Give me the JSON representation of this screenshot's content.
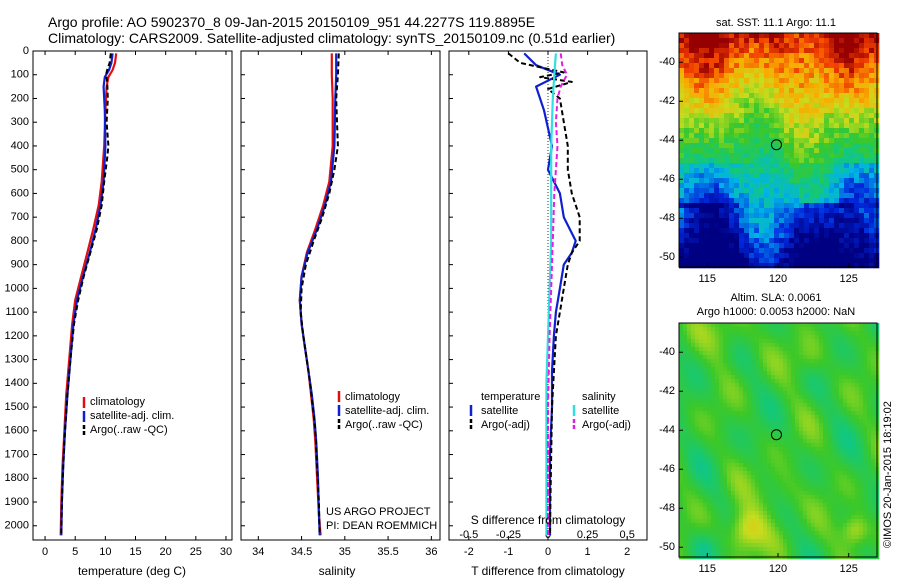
{
  "header": {
    "line1": "Argo profile: AO 5902370_8 09-Jan-2015 20150109_951 44.2277S 119.8895E",
    "line2": "Climatology: CARS2009. Satellite-adjusted climatology: synTS_20150109.nc (0.51d earlier)"
  },
  "colors": {
    "climatology": "#e01010",
    "satellite": "#1020d0",
    "argo": "#000000",
    "salinity_satellite": "#30e0e0",
    "salinity_argo": "#e020e0"
  },
  "chart_data": [
    {
      "type": "line",
      "id": "temperature",
      "xlabel": "temperature (deg C)",
      "ylabel": "",
      "xlim": [
        -2,
        31
      ],
      "ylim": [
        2060,
        0
      ],
      "xticks": [
        0,
        5,
        10,
        15,
        20,
        25,
        30
      ],
      "yticks": [
        0,
        100,
        200,
        300,
        400,
        500,
        600,
        700,
        800,
        900,
        1000,
        1100,
        1200,
        1300,
        1400,
        1500,
        1600,
        1700,
        1800,
        1900,
        2000
      ],
      "legend_position": "lower-middle",
      "legend": [
        {
          "label": "climatology",
          "style": "solid",
          "color": "#e01010"
        },
        {
          "label": "satellite-adj. clim.",
          "style": "solid",
          "color": "#1020d0"
        },
        {
          "label": "Argo(..raw -QC)",
          "style": "dashed",
          "color": "#000000"
        }
      ],
      "series": [
        {
          "name": "climatology",
          "color": "#e01010",
          "style": "solid",
          "points": [
            [
              11.8,
              10
            ],
            [
              11.6,
              50
            ],
            [
              11.2,
              80
            ],
            [
              10.5,
              110
            ],
            [
              10.2,
              150
            ],
            [
              10.0,
              250
            ],
            [
              9.8,
              400
            ],
            [
              9.4,
              550
            ],
            [
              8.9,
              650
            ],
            [
              8.0,
              750
            ],
            [
              7.0,
              850
            ],
            [
              6.0,
              950
            ],
            [
              5.0,
              1050
            ],
            [
              4.5,
              1150
            ],
            [
              4.0,
              1300
            ],
            [
              3.5,
              1450
            ],
            [
              3.2,
              1600
            ],
            [
              2.9,
              1750
            ],
            [
              2.7,
              1900
            ],
            [
              2.6,
              2040
            ]
          ]
        },
        {
          "name": "satellite-adj. clim.",
          "color": "#1020d0",
          "style": "solid",
          "points": [
            [
              11.2,
              10
            ],
            [
              11.0,
              50
            ],
            [
              10.6,
              80
            ],
            [
              9.9,
              110
            ],
            [
              9.7,
              150
            ],
            [
              9.9,
              250
            ],
            [
              10.0,
              400
            ],
            [
              9.7,
              550
            ],
            [
              9.2,
              650
            ],
            [
              8.4,
              750
            ],
            [
              7.4,
              850
            ],
            [
              6.3,
              950
            ],
            [
              5.3,
              1050
            ],
            [
              4.7,
              1150
            ],
            [
              4.2,
              1300
            ],
            [
              3.7,
              1450
            ],
            [
              3.3,
              1600
            ],
            [
              3.0,
              1750
            ],
            [
              2.8,
              1900
            ],
            [
              2.7,
              2040
            ]
          ]
        },
        {
          "name": "Argo(..raw -QC)",
          "color": "#000000",
          "style": "dashed",
          "points": [
            [
              10.9,
              10
            ],
            [
              10.7,
              50
            ],
            [
              10.3,
              80
            ],
            [
              10.1,
              100
            ],
            [
              10.3,
              130
            ],
            [
              10.4,
              200
            ],
            [
              10.2,
              300
            ],
            [
              10.5,
              400
            ],
            [
              10.3,
              450
            ],
            [
              9.8,
              550
            ],
            [
              9.4,
              650
            ],
            [
              8.6,
              750
            ],
            [
              7.5,
              850
            ],
            [
              6.4,
              950
            ],
            [
              5.5,
              1050
            ],
            [
              4.8,
              1150
            ],
            [
              4.2,
              1300
            ],
            [
              3.7,
              1450
            ],
            [
              3.3,
              1600
            ],
            [
              3.0,
              1750
            ],
            [
              2.8,
              1900
            ],
            [
              2.7,
              2040
            ]
          ]
        }
      ]
    },
    {
      "type": "line",
      "id": "salinity",
      "xlabel": "salinity",
      "ylabel": "",
      "xlim": [
        33.8,
        36.1
      ],
      "ylim": [
        2060,
        0
      ],
      "xticks": [
        34,
        34.5,
        35,
        35.5,
        36
      ],
      "legend_position": "lower-right",
      "legend": [
        {
          "label": "climatology",
          "style": "solid",
          "color": "#e01010"
        },
        {
          "label": "satellite-adj. clim.",
          "style": "solid",
          "color": "#1020d0"
        },
        {
          "label": "Argo(..raw -QC)",
          "style": "dashed",
          "color": "#000000"
        }
      ],
      "annotation": [
        "US ARGO PROJECT",
        "PI: DEAN ROEMMICH"
      ],
      "series": [
        {
          "name": "climatology",
          "color": "#e01010",
          "style": "solid",
          "points": [
            [
              34.85,
              10
            ],
            [
              34.85,
              100
            ],
            [
              34.86,
              200
            ],
            [
              34.86,
              400
            ],
            [
              34.82,
              550
            ],
            [
              34.75,
              650
            ],
            [
              34.66,
              750
            ],
            [
              34.56,
              850
            ],
            [
              34.5,
              950
            ],
            [
              34.48,
              1050
            ],
            [
              34.5,
              1150
            ],
            [
              34.54,
              1250
            ],
            [
              34.58,
              1350
            ],
            [
              34.61,
              1450
            ],
            [
              34.64,
              1550
            ],
            [
              34.66,
              1650
            ],
            [
              34.68,
              1800
            ],
            [
              34.7,
              1950
            ],
            [
              34.72,
              2040
            ]
          ]
        },
        {
          "name": "satellite-adj. clim.",
          "color": "#1020d0",
          "style": "solid",
          "points": [
            [
              34.9,
              10
            ],
            [
              34.9,
              100
            ],
            [
              34.89,
              200
            ],
            [
              34.88,
              400
            ],
            [
              34.84,
              550
            ],
            [
              34.77,
              650
            ],
            [
              34.68,
              750
            ],
            [
              34.57,
              850
            ],
            [
              34.5,
              950
            ],
            [
              34.48,
              1050
            ],
            [
              34.5,
              1150
            ],
            [
              34.54,
              1250
            ],
            [
              34.58,
              1350
            ],
            [
              34.62,
              1450
            ],
            [
              34.65,
              1550
            ],
            [
              34.67,
              1650
            ],
            [
              34.69,
              1800
            ],
            [
              34.7,
              1950
            ],
            [
              34.71,
              2040
            ]
          ]
        },
        {
          "name": "Argo(..raw -QC)",
          "color": "#000000",
          "style": "dashed",
          "points": [
            [
              34.93,
              10
            ],
            [
              34.92,
              100
            ],
            [
              34.9,
              200
            ],
            [
              34.91,
              300
            ],
            [
              34.92,
              400
            ],
            [
              34.88,
              500
            ],
            [
              34.82,
              600
            ],
            [
              34.74,
              700
            ],
            [
              34.64,
              800
            ],
            [
              34.55,
              900
            ],
            [
              34.5,
              1000
            ],
            [
              34.49,
              1100
            ],
            [
              34.52,
              1200
            ],
            [
              34.56,
              1300
            ],
            [
              34.6,
              1400
            ],
            [
              34.63,
              1500
            ],
            [
              34.66,
              1600
            ],
            [
              34.68,
              1750
            ],
            [
              34.7,
              1900
            ],
            [
              34.71,
              2040
            ]
          ]
        }
      ]
    },
    {
      "type": "line",
      "id": "difference",
      "xlabel": "T difference from climatology",
      "x2label": "S difference from climatology",
      "ylabel": "",
      "xlim": [
        -2.5,
        2.5
      ],
      "x2lim": [
        -0.625,
        0.625
      ],
      "ylim": [
        2060,
        0
      ],
      "xticks": [
        -2,
        -1,
        0,
        1,
        2
      ],
      "x2ticks": [
        -0.5,
        -0.25,
        0,
        0.25,
        0.5
      ],
      "legend_position": "lower-middle",
      "legend_groups": [
        {
          "title": "temperature",
          "items": [
            {
              "label": "satellite",
              "style": "solid",
              "color": "#1020d0"
            },
            {
              "label": "Argo(-adj)",
              "style": "dashed",
              "color": "#000000"
            }
          ]
        },
        {
          "title": "salinity",
          "items": [
            {
              "label": "satellite",
              "style": "solid",
              "color": "#30e0e0"
            },
            {
              "label": "Argo(-adj)",
              "style": "dashed",
              "color": "#e020e0"
            }
          ]
        }
      ],
      "series": [
        {
          "name": "T satellite",
          "color": "#1020d0",
          "style": "solid",
          "axis": "T",
          "points": [
            [
              -0.6,
              10
            ],
            [
              -0.3,
              60
            ],
            [
              0.3,
              100
            ],
            [
              -0.3,
              150
            ],
            [
              -0.1,
              250
            ],
            [
              0.1,
              400
            ],
            [
              0.0,
              500
            ],
            [
              0.3,
              600
            ],
            [
              0.4,
              700
            ],
            [
              0.7,
              800
            ],
            [
              0.6,
              850
            ],
            [
              0.4,
              900
            ],
            [
              0.3,
              1000
            ],
            [
              0.2,
              1100
            ],
            [
              0.15,
              1200
            ],
            [
              0.1,
              1350
            ],
            [
              0.1,
              1500
            ],
            [
              0.05,
              1700
            ],
            [
              0.05,
              1900
            ],
            [
              0.05,
              2040
            ]
          ]
        },
        {
          "name": "T Argo(-adj)",
          "color": "#000000",
          "style": "dashed",
          "axis": "T",
          "points": [
            [
              -1.0,
              10
            ],
            [
              -0.7,
              50
            ],
            [
              0.4,
              90
            ],
            [
              -0.2,
              110
            ],
            [
              0.6,
              130
            ],
            [
              0.0,
              160
            ],
            [
              0.3,
              200
            ],
            [
              0.4,
              300
            ],
            [
              0.5,
              400
            ],
            [
              0.5,
              500
            ],
            [
              0.6,
              600
            ],
            [
              0.8,
              700
            ],
            [
              0.8,
              800
            ],
            [
              0.6,
              850
            ],
            [
              0.5,
              900
            ],
            [
              0.4,
              1000
            ],
            [
              0.3,
              1100
            ],
            [
              0.2,
              1200
            ],
            [
              0.15,
              1350
            ],
            [
              0.1,
              1500
            ],
            [
              0.08,
              1700
            ],
            [
              0.06,
              1900
            ],
            [
              0.05,
              2040
            ]
          ]
        },
        {
          "name": "S satellite",
          "color": "#30e0e0",
          "style": "solid",
          "axis": "S",
          "points": [
            [
              0.05,
              10
            ],
            [
              0.04,
              100
            ],
            [
              0.03,
              200
            ],
            [
              0.02,
              400
            ],
            [
              0.02,
              600
            ],
            [
              0.02,
              800
            ],
            [
              0.01,
              1000
            ],
            [
              0.0,
              1200
            ],
            [
              -0.01,
              1400
            ],
            [
              -0.01,
              1600
            ],
            [
              -0.01,
              1800
            ],
            [
              -0.01,
              2040
            ]
          ]
        },
        {
          "name": "S Argo(-adj)",
          "color": "#e020e0",
          "style": "dashed",
          "axis": "S",
          "points": [
            [
              0.08,
              10
            ],
            [
              0.09,
              60
            ],
            [
              0.12,
              100
            ],
            [
              0.08,
              150
            ],
            [
              0.06,
              200
            ],
            [
              0.05,
              300
            ],
            [
              0.06,
              400
            ],
            [
              0.05,
              500
            ],
            [
              0.04,
              600
            ],
            [
              0.03,
              800
            ],
            [
              0.02,
              1000
            ],
            [
              0.01,
              1200
            ],
            [
              0.0,
              1500
            ],
            [
              0.0,
              1800
            ],
            [
              0.0,
              2040
            ]
          ]
        }
      ]
    },
    {
      "type": "heatmap",
      "id": "sst_map",
      "title": "sat. SST: 11.1  Argo: 11.1",
      "xlim": [
        113,
        127
      ],
      "ylim": [
        -50.5,
        -38.5
      ],
      "xticks": [
        115,
        120,
        125
      ],
      "yticks": [
        -40,
        -42,
        -44,
        -46,
        -48,
        -50
      ],
      "marker": {
        "lon": 119.8895,
        "lat": -44.2277
      }
    },
    {
      "type": "heatmap",
      "id": "sla_map",
      "title": [
        "Altim. SLA: 0.0061",
        "Argo h1000: 0.0053 h2000: NaN"
      ],
      "xlim": [
        113,
        127
      ],
      "ylim": [
        -50.5,
        -38.5
      ],
      "xticks": [
        115,
        120,
        125
      ],
      "yticks": [
        -40,
        -42,
        -44,
        -46,
        -48,
        -50
      ],
      "marker": {
        "lon": 119.8895,
        "lat": -44.2277
      }
    }
  ],
  "credit": "©IMOS 20-Jan-2015 18:19:02"
}
